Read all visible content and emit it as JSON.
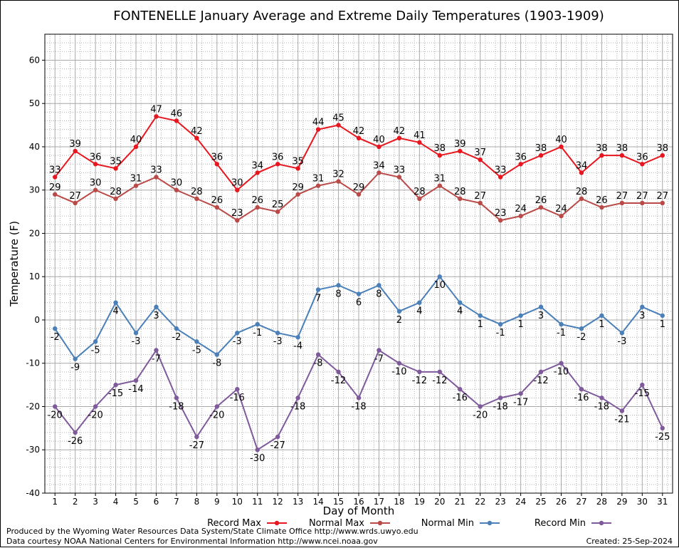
{
  "chart_data": {
    "type": "line",
    "title": "FONTENELLE January Average and Extreme Daily Temperatures (1903-1909)",
    "xlabel": "Day of Month",
    "ylabel": "Temperature (F)",
    "ylim": [
      -40,
      66
    ],
    "yticks": [
      -40,
      -30,
      -20,
      -10,
      0,
      10,
      20,
      30,
      40,
      50,
      60
    ],
    "x": [
      1,
      2,
      3,
      4,
      5,
      6,
      7,
      8,
      9,
      10,
      11,
      12,
      13,
      14,
      15,
      16,
      17,
      18,
      19,
      20,
      21,
      22,
      23,
      24,
      25,
      26,
      27,
      28,
      29,
      30,
      31
    ],
    "grid": true,
    "legend_position": "bottom",
    "series": [
      {
        "name": "Record Max",
        "color": "#e8161f",
        "label_position": "above",
        "values": [
          33,
          39,
          36,
          35,
          40,
          47,
          46,
          42,
          36,
          30,
          34,
          36,
          35,
          44,
          45,
          42,
          40,
          42,
          41,
          38,
          39,
          37,
          33,
          36,
          38,
          40,
          34,
          38,
          38,
          36,
          38
        ]
      },
      {
        "name": "Normal Max",
        "color": "#b94a48",
        "label_position": "above",
        "values": [
          29,
          27,
          30,
          28,
          31,
          33,
          30,
          28,
          26,
          23,
          26,
          25,
          29,
          31,
          32,
          29,
          34,
          33,
          28,
          31,
          28,
          27,
          23,
          24,
          26,
          24,
          28,
          26,
          27,
          27,
          27
        ]
      },
      {
        "name": "Normal Min",
        "color": "#4a7fb8",
        "label_position": "below",
        "values": [
          -2,
          -9,
          -5,
          4,
          -3,
          3,
          -2,
          -5,
          -8,
          -3,
          -1,
          -3,
          -4,
          7,
          8,
          6,
          8,
          2,
          4,
          10,
          4,
          1,
          -1,
          1,
          3,
          -1,
          -2,
          1,
          -3,
          3,
          1
        ]
      },
      {
        "name": "Record Min",
        "color": "#7e5a9b",
        "label_position": "below",
        "values": [
          -20,
          -26,
          -20,
          -15,
          -14,
          -7,
          -18,
          -27,
          -20,
          -16,
          -30,
          -27,
          -18,
          -8,
          -12,
          -18,
          -7,
          -10,
          -12,
          -12,
          -16,
          -20,
          -18,
          -17,
          -12,
          -10,
          -16,
          -18,
          -21,
          -15,
          -25
        ]
      }
    ]
  },
  "footer": {
    "line1": "Produced by the Wyoming Water Resources Data System/State Climate Office http://www.wrds.uwyo.edu",
    "line2": "Data courtesy NOAA National Centers for Environmental Information http://www.ncei.noaa.gov",
    "created": "Created:  25-Sep-2024"
  }
}
